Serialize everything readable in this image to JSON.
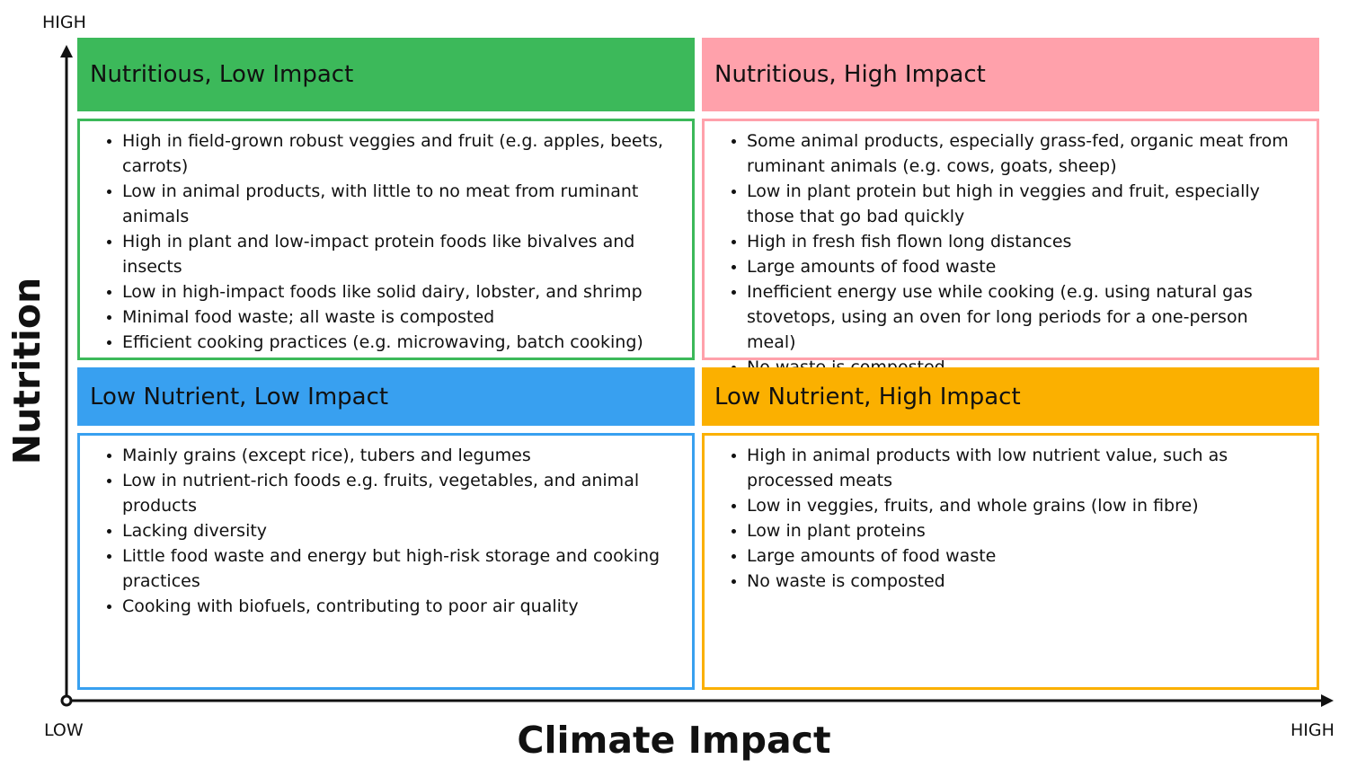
{
  "axes": {
    "y_title": "Nutrition",
    "y_high": "HIGH",
    "x_title": "Climate Impact",
    "x_low": "LOW",
    "x_high": "HIGH"
  },
  "quadrants": [
    {
      "title": "Nutritious, Low Impact",
      "color": "#3cb95a",
      "items": [
        "High in field-grown robust veggies and fruit (e.g. apples, beets, carrots)",
        "Low in animal products, with little to no meat from ruminant animals",
        "High in plant and low-impact protein foods like bivalves and insects",
        "Low in high-impact foods like solid dairy, lobster, and shrimp",
        "Minimal food waste; all waste is composted",
        "Efficient cooking practices (e.g. microwaving, batch cooking)"
      ]
    },
    {
      "title": "Nutritious, High Impact",
      "color": "#ffa1ab",
      "items": [
        "Some animal products, especially grass-fed, organic meat from ruminant animals (e.g. cows, goats, sheep)",
        "Low in plant protein but high in veggies and fruit, especially those that go bad quickly",
        "High in fresh fish flown long distances",
        "Large amounts of food waste",
        "Inefficient energy use while cooking (e.g. using natural gas stovetops, using an oven for long periods for a one-person meal)",
        "No waste is composted"
      ]
    },
    {
      "title": "Low Nutrient, Low Impact",
      "color": "#38a0f0",
      "items": [
        "Mainly grains (except rice), tubers and legumes",
        "Low in nutrient-rich foods e.g. fruits, vegetables, and animal products",
        "Lacking diversity",
        "Little food waste and energy but high-risk storage and cooking practices",
        "Cooking with biofuels, contributing to poor air quality"
      ]
    },
    {
      "title": "Low Nutrient, High Impact",
      "color": "#fbb000",
      "items": [
        "High in animal products with low nutrient value, such as processed meats",
        "Low in veggies, fruits, and whole grains (low in fibre)",
        "Low in plant proteins",
        "Large amounts of food waste",
        "No waste is composted"
      ]
    }
  ]
}
